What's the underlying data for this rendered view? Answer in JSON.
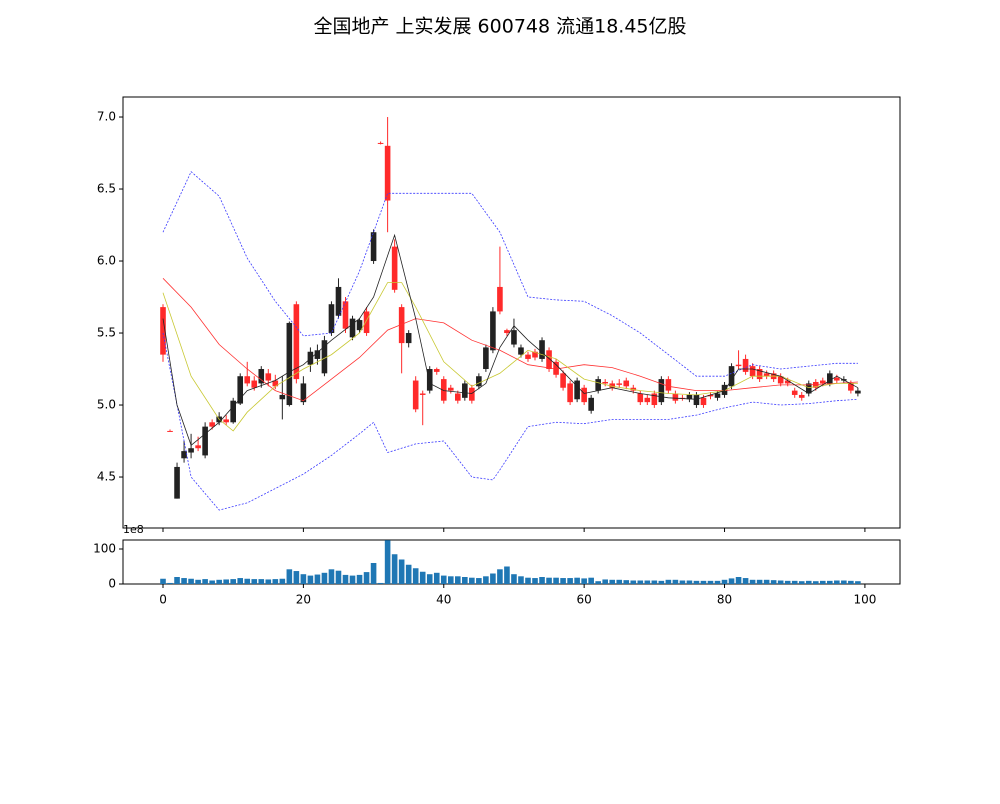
{
  "chart_data": [
    {
      "type": "candlestick",
      "title": "全国地产 上实发展 600748 流通18.45亿股",
      "up_color": "#ff2a2a",
      "down_color": "#222222",
      "x": [
        0,
        1,
        2,
        3,
        4,
        5,
        6,
        7,
        8,
        9,
        10,
        11,
        12,
        13,
        14,
        15,
        16,
        17,
        18,
        19,
        20,
        21,
        22,
        23,
        24,
        25,
        26,
        27,
        28,
        29,
        30,
        31,
        32,
        33,
        34,
        35,
        36,
        37,
        38,
        39,
        40,
        41,
        42,
        43,
        44,
        45,
        46,
        47,
        48,
        49,
        50,
        51,
        52,
        53,
        54,
        55,
        56,
        57,
        58,
        59,
        60,
        61,
        62,
        63,
        64,
        65,
        66,
        67,
        68,
        69,
        70,
        71,
        72,
        73,
        74,
        75,
        76,
        77,
        78,
        79,
        80,
        81,
        82,
        83,
        84,
        85,
        86,
        87,
        88,
        89,
        90,
        91,
        92,
        93,
        94,
        95,
        96,
        97,
        98,
        99
      ],
      "open": [
        5.35,
        4.82,
        4.57,
        4.68,
        4.7,
        4.7,
        4.85,
        4.85,
        4.92,
        4.88,
        5.03,
        5.2,
        5.15,
        5.12,
        5.25,
        5.17,
        5.13,
        5.07,
        5.57,
        5.18,
        5.15,
        5.37,
        5.38,
        5.45,
        5.7,
        5.82,
        5.53,
        5.6,
        5.59,
        5.5,
        6.2,
        6.82,
        6.42,
        5.8,
        5.43,
        5.5,
        4.97,
        5.07,
        5.25,
        5.23,
        5.03,
        5.1,
        5.03,
        5.15,
        5.03,
        5.2,
        5.4,
        5.65,
        5.65,
        5.5,
        5.52,
        5.4,
        5.32,
        5.33,
        5.45,
        5.25,
        5.21,
        5.12,
        5.02,
        5.17,
        5.02,
        5.05,
        5.18,
        5.15,
        5.12,
        5.14,
        5.13,
        5.1,
        5.02,
        5.02,
        5.0,
        5.18,
        5.1,
        5.03,
        5.05,
        5.07,
        5.07,
        5.0,
        5.06,
        5.08,
        5.14,
        5.27,
        5.27,
        5.23,
        5.2,
        5.18,
        5.2,
        5.18,
        5.15,
        5.15,
        5.07,
        5.05,
        5.15,
        5.12,
        5.15,
        5.22,
        5.17,
        5.18,
        5.1,
        5.1
      ],
      "close": [
        5.68,
        4.82,
        4.35,
        4.63,
        4.67,
        4.72,
        4.65,
        4.88,
        4.88,
        4.9,
        4.88,
        5.01,
        5.2,
        5.17,
        5.15,
        5.22,
        5.17,
        5.04,
        5.0,
        5.7,
        5.02,
        5.28,
        5.32,
        5.22,
        5.5,
        5.62,
        5.72,
        5.47,
        5.52,
        5.65,
        6.0,
        6.82,
        6.8,
        6.1,
        5.68,
        5.43,
        5.17,
        5.08,
        5.1,
        5.25,
        5.18,
        5.12,
        5.08,
        5.05,
        5.12,
        5.13,
        5.25,
        5.38,
        5.82,
        5.52,
        5.42,
        5.35,
        5.35,
        5.37,
        5.32,
        5.38,
        5.3,
        5.22,
        5.15,
        5.04,
        5.12,
        4.96,
        5.1,
        5.16,
        5.15,
        5.15,
        5.17,
        5.12,
        5.08,
        5.05,
        5.08,
        5.02,
        5.18,
        5.08,
        5.05,
        5.04,
        5.0,
        5.05,
        5.07,
        5.05,
        5.07,
        5.13,
        5.28,
        5.32,
        5.27,
        5.25,
        5.22,
        5.22,
        5.2,
        5.17,
        5.1,
        5.07,
        5.08,
        5.16,
        5.17,
        5.15,
        5.19,
        5.17,
        5.15,
        5.08
      ],
      "high": [
        5.7,
        4.83,
        4.6,
        4.75,
        4.8,
        4.78,
        4.88,
        4.9,
        4.95,
        4.93,
        5.05,
        5.22,
        5.3,
        5.2,
        5.27,
        5.25,
        5.21,
        5.2,
        5.58,
        5.72,
        5.2,
        5.4,
        5.42,
        5.48,
        5.72,
        5.88,
        5.75,
        5.62,
        5.6,
        5.68,
        6.22,
        6.83,
        7.0,
        6.15,
        5.7,
        5.52,
        5.2,
        5.1,
        5.27,
        5.26,
        5.2,
        5.14,
        5.1,
        5.17,
        5.14,
        5.22,
        5.42,
        5.68,
        6.1,
        5.53,
        5.6,
        5.42,
        5.37,
        5.39,
        5.47,
        5.4,
        5.32,
        5.24,
        5.17,
        5.19,
        5.14,
        5.07,
        5.2,
        5.18,
        5.17,
        5.18,
        5.19,
        5.14,
        5.1,
        5.07,
        5.1,
        5.2,
        5.2,
        5.1,
        5.07,
        5.09,
        5.09,
        5.07,
        5.09,
        5.1,
        5.16,
        5.29,
        5.38,
        5.35,
        5.29,
        5.27,
        5.24,
        5.24,
        5.22,
        5.19,
        5.12,
        5.09,
        5.17,
        5.18,
        5.19,
        5.24,
        5.21,
        5.2,
        5.17,
        5.12
      ],
      "low": [
        5.3,
        4.82,
        4.35,
        4.6,
        4.63,
        4.68,
        4.63,
        4.83,
        4.86,
        4.86,
        4.87,
        5.0,
        5.13,
        5.1,
        5.12,
        5.13,
        5.11,
        4.9,
        4.99,
        5.15,
        5.0,
        5.23,
        5.28,
        5.2,
        5.48,
        5.6,
        5.5,
        5.45,
        5.5,
        5.48,
        5.98,
        6.81,
        6.2,
        5.78,
        5.22,
        5.4,
        4.95,
        4.86,
        5.08,
        5.21,
        5.01,
        5.08,
        5.01,
        5.03,
        5.01,
        5.11,
        5.23,
        5.36,
        5.63,
        5.48,
        5.4,
        5.33,
        5.3,
        5.31,
        5.3,
        5.23,
        5.19,
        5.1,
        5.0,
        5.02,
        5.0,
        4.94,
        5.08,
        5.13,
        5.1,
        5.12,
        5.11,
        5.08,
        5.0,
        5.0,
        4.98,
        5.0,
        5.08,
        5.01,
        5.03,
        5.02,
        4.98,
        4.98,
        5.04,
        5.03,
        5.05,
        5.11,
        5.25,
        5.21,
        5.18,
        5.16,
        5.18,
        5.16,
        5.13,
        5.13,
        5.05,
        5.03,
        5.06,
        5.1,
        5.13,
        5.13,
        5.15,
        5.15,
        5.08,
        5.06
      ],
      "lines": [
        {
          "color": "#3a3aff",
          "dash": true,
          "x": [
            0,
            4,
            8,
            12,
            16,
            20,
            24,
            28,
            32,
            36,
            40,
            44,
            48,
            52,
            56,
            60,
            64,
            68,
            72,
            76,
            80,
            84,
            88,
            92,
            96,
            99
          ],
          "values": [
            6.2,
            6.62,
            6.45,
            6.02,
            5.72,
            5.48,
            5.5,
            5.93,
            6.47,
            6.47,
            6.47,
            6.47,
            6.2,
            5.75,
            5.73,
            5.72,
            5.62,
            5.5,
            5.35,
            5.2,
            5.2,
            5.28,
            5.25,
            5.27,
            5.29,
            5.29
          ]
        },
        {
          "color": "#3a3aff",
          "dash": true,
          "x": [
            0,
            4,
            8,
            12,
            16,
            20,
            24,
            28,
            30,
            32,
            36,
            40,
            44,
            47,
            48,
            52,
            56,
            60,
            64,
            68,
            72,
            76,
            80,
            84,
            88,
            92,
            96,
            99
          ],
          "values": [
            5.5,
            4.5,
            4.27,
            4.32,
            4.42,
            4.52,
            4.65,
            4.8,
            4.88,
            4.67,
            4.73,
            4.75,
            4.5,
            4.48,
            4.55,
            4.85,
            4.88,
            4.87,
            4.9,
            4.9,
            4.9,
            4.93,
            4.98,
            5.02,
            5.0,
            5.01,
            5.03,
            5.04
          ]
        },
        {
          "color": "#ff3030",
          "dash": false,
          "x": [
            0,
            4,
            8,
            12,
            16,
            20,
            24,
            28,
            32,
            36,
            40,
            44,
            48,
            52,
            56,
            60,
            64,
            68,
            72,
            76,
            80,
            84,
            88,
            92,
            96,
            99
          ],
          "values": [
            5.88,
            5.68,
            5.42,
            5.25,
            5.1,
            5.03,
            5.18,
            5.33,
            5.52,
            5.6,
            5.57,
            5.45,
            5.38,
            5.28,
            5.25,
            5.28,
            5.26,
            5.2,
            5.13,
            5.1,
            5.1,
            5.12,
            5.14,
            5.14,
            5.15,
            5.16
          ]
        },
        {
          "color": "#c8c832",
          "dash": false,
          "x": [
            0,
            4,
            8,
            10,
            12,
            16,
            20,
            24,
            28,
            32,
            34,
            36,
            40,
            44,
            48,
            50,
            52,
            56,
            60,
            64,
            68,
            72,
            76,
            80,
            84,
            88,
            92,
            96,
            99
          ],
          "values": [
            5.78,
            5.2,
            4.9,
            4.82,
            4.95,
            5.13,
            5.25,
            5.35,
            5.5,
            5.85,
            5.85,
            5.68,
            5.3,
            5.13,
            5.22,
            5.3,
            5.38,
            5.32,
            5.18,
            5.13,
            5.1,
            5.08,
            5.07,
            5.1,
            5.2,
            5.2,
            5.12,
            5.15,
            5.15
          ]
        },
        {
          "color": "#222222",
          "dash": false,
          "x": [
            0,
            2,
            4,
            8,
            12,
            16,
            18,
            20,
            24,
            28,
            30,
            33,
            36,
            38,
            40,
            44,
            46,
            48,
            50,
            52,
            56,
            60,
            64,
            68,
            72,
            76,
            80,
            82,
            84,
            88,
            92,
            96,
            99
          ],
          "values": [
            5.6,
            5.0,
            4.72,
            4.88,
            5.1,
            5.17,
            5.23,
            5.28,
            5.45,
            5.6,
            5.75,
            6.18,
            5.6,
            5.15,
            5.1,
            5.08,
            5.15,
            5.4,
            5.55,
            5.45,
            5.28,
            5.08,
            5.12,
            5.08,
            5.05,
            5.04,
            5.1,
            5.25,
            5.25,
            5.2,
            5.08,
            5.2,
            5.12
          ]
        }
      ],
      "xlim": [
        -5.7,
        105
      ],
      "ylim": [
        4.146,
        7.139
      ],
      "xticks": [
        0,
        20,
        40,
        60,
        80,
        100
      ],
      "yticks": [
        4.5,
        {
          "value": 5,
          "label": "5.0"
        },
        5.5,
        {
          "value": 6,
          "label": "6.0"
        },
        6.5,
        {
          "value": 7,
          "label": "7.0"
        }
      ]
    },
    {
      "type": "bar",
      "color": "#1f77b4",
      "offset_label": "1e8",
      "x": [
        0,
        1,
        2,
        3,
        4,
        5,
        6,
        7,
        8,
        9,
        10,
        11,
        12,
        13,
        14,
        15,
        16,
        17,
        18,
        19,
        20,
        21,
        22,
        23,
        24,
        25,
        26,
        27,
        28,
        29,
        30,
        31,
        32,
        33,
        34,
        35,
        36,
        37,
        38,
        39,
        40,
        41,
        42,
        43,
        44,
        45,
        46,
        47,
        48,
        49,
        50,
        51,
        52,
        53,
        54,
        55,
        56,
        57,
        58,
        59,
        60,
        61,
        62,
        63,
        64,
        65,
        66,
        67,
        68,
        69,
        70,
        71,
        72,
        73,
        74,
        75,
        76,
        77,
        78,
        79,
        80,
        81,
        82,
        83,
        84,
        85,
        86,
        87,
        88,
        89,
        90,
        91,
        92,
        93,
        94,
        95,
        96,
        97,
        98,
        99
      ],
      "values": [
        15,
        3,
        20,
        17,
        15,
        12,
        14,
        10,
        12,
        13,
        14,
        17,
        15,
        14,
        14,
        13,
        14,
        15,
        42,
        37,
        28,
        24,
        27,
        32,
        42,
        38,
        26,
        24,
        26,
        34,
        60,
        3,
        125,
        85,
        70,
        55,
        45,
        35,
        28,
        32,
        24,
        22,
        22,
        20,
        18,
        17,
        22,
        30,
        42,
        50,
        28,
        22,
        18,
        17,
        20,
        18,
        18,
        17,
        17,
        18,
        16,
        18,
        8,
        13,
        12,
        12,
        11,
        10,
        10,
        10,
        10,
        9,
        12,
        12,
        10,
        10,
        9,
        9,
        9,
        9,
        12,
        16,
        20,
        17,
        12,
        12,
        12,
        11,
        10,
        9,
        9,
        8,
        9,
        8,
        9,
        9,
        10,
        10,
        9,
        8
      ],
      "xlim": [
        -5.7,
        105
      ],
      "ylim": [
        0,
        125.7
      ],
      "xticks": [
        0,
        20,
        40,
        60,
        80,
        100
      ],
      "yticks": [
        0,
        100
      ]
    }
  ]
}
